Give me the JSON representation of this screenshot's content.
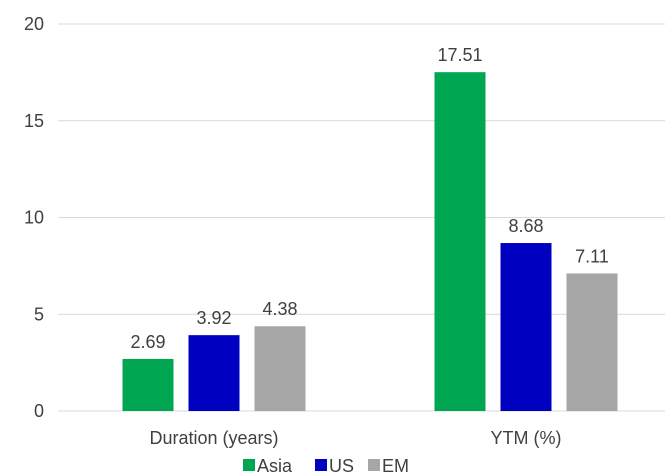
{
  "chart_data": {
    "type": "bar",
    "title": "",
    "xlabel": "",
    "ylabel": "",
    "categories": [
      "Duration (years)",
      "YTM (%)"
    ],
    "series": [
      {
        "name": "Asia",
        "color": "#00A651",
        "values": [
          2.69,
          17.51
        ],
        "labels": [
          "2.69",
          "17.51"
        ]
      },
      {
        "name": "US",
        "color": "#0000C0",
        "values": [
          3.92,
          8.68
        ],
        "labels": [
          "3.92",
          "8.68"
        ]
      },
      {
        "name": "EM",
        "color": "#A6A6A6",
        "values": [
          4.38,
          7.11
        ],
        "labels": [
          "4.38",
          "7.11"
        ]
      }
    ],
    "ylim": [
      0,
      20
    ],
    "yticks": [
      "0",
      "5",
      "10",
      "15",
      "20"
    ],
    "grid": true,
    "legend_position": "bottom",
    "colors": {
      "gridline": "#D9D9D9",
      "text": "#404040"
    }
  }
}
